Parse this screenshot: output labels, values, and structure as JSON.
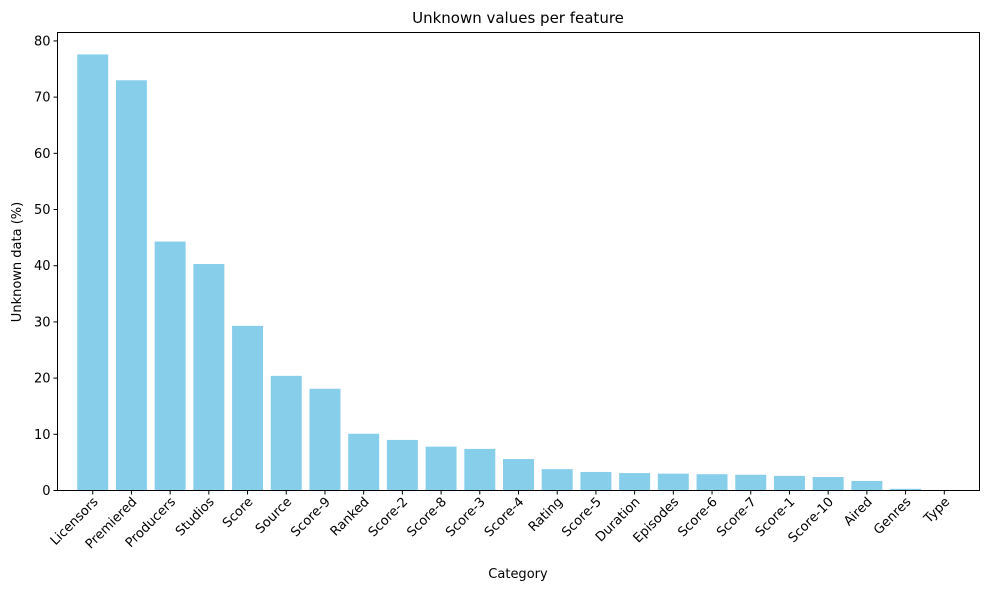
{
  "chart_data": {
    "type": "bar",
    "title": "Unknown values per feature",
    "xlabel": "Category",
    "ylabel": "Unknown data (%)",
    "categories": [
      "Licensors",
      "Premiered",
      "Producers",
      "Studios",
      "Score",
      "Source",
      "Score-9",
      "Ranked",
      "Score-2",
      "Score-8",
      "Score-3",
      "Score-4",
      "Rating",
      "Score-5",
      "Duration",
      "Episodes",
      "Score-6",
      "Score-7",
      "Score-1",
      "Score-10",
      "Aired",
      "Genres",
      "Type"
    ],
    "values": [
      77.6,
      73.0,
      44.3,
      40.3,
      29.3,
      20.4,
      18.1,
      10.1,
      9.0,
      7.8,
      7.4,
      5.6,
      3.8,
      3.3,
      3.1,
      3.0,
      2.9,
      2.8,
      2.6,
      2.4,
      1.7,
      0.3,
      0.1
    ],
    "ylim": [
      0,
      81.5
    ],
    "yticks": [
      0,
      10,
      20,
      30,
      40,
      50,
      60,
      70,
      80
    ],
    "bar_color": "#87ceeb",
    "grid": false,
    "x_tick_rotation": 45
  }
}
